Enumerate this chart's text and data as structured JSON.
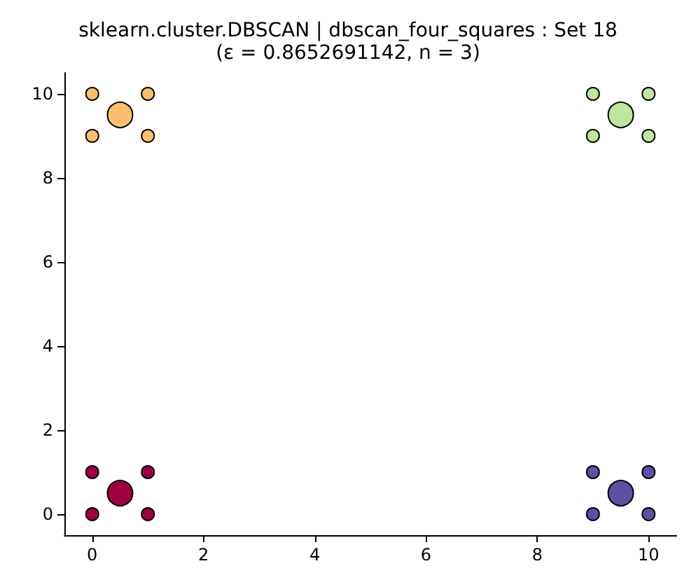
{
  "chart_data": {
    "type": "bubble",
    "title": "sklearn.cluster.DBSCAN | dbscan_four_squares : Set 18",
    "subtitle": "(ε = 0.8652691142, n = 3)",
    "series": [
      {
        "color": "#9e0142",
        "x": [
          0,
          0,
          1,
          1,
          0.5
        ],
        "values": [
          0,
          1,
          0,
          1,
          0.5
        ],
        "sizes": [
          0.25,
          0.25,
          0.25,
          0.25,
          1
        ]
      },
      {
        "color": "#fdbf6f",
        "x": [
          0,
          0,
          1,
          1,
          0.5
        ],
        "values": [
          9,
          10,
          9,
          10,
          9.5
        ],
        "sizes": [
          0.25,
          0.25,
          0.25,
          0.25,
          1
        ]
      },
      {
        "color": "#bfe5a0",
        "x": [
          9,
          9,
          10,
          10,
          9.5
        ],
        "values": [
          9,
          10,
          9,
          10,
          9.5
        ],
        "sizes": [
          0.25,
          0.25,
          0.25,
          0.25,
          1
        ]
      },
      {
        "color": "#5e4fa2",
        "x": [
          9,
          9,
          10,
          10,
          9.5
        ],
        "values": [
          0,
          1,
          0,
          1,
          0.5
        ],
        "sizes": [
          0.25,
          0.25,
          0.25,
          0.25,
          1
        ]
      }
    ],
    "xlim": [
      -0.5,
      10.5
    ],
    "ylim": [
      -0.5,
      10.5
    ],
    "xticks": [
      0,
      2,
      4,
      6,
      8,
      10
    ],
    "yticks": [
      0,
      2,
      4,
      6,
      8,
      10
    ],
    "grid": false,
    "marker": "circle"
  }
}
